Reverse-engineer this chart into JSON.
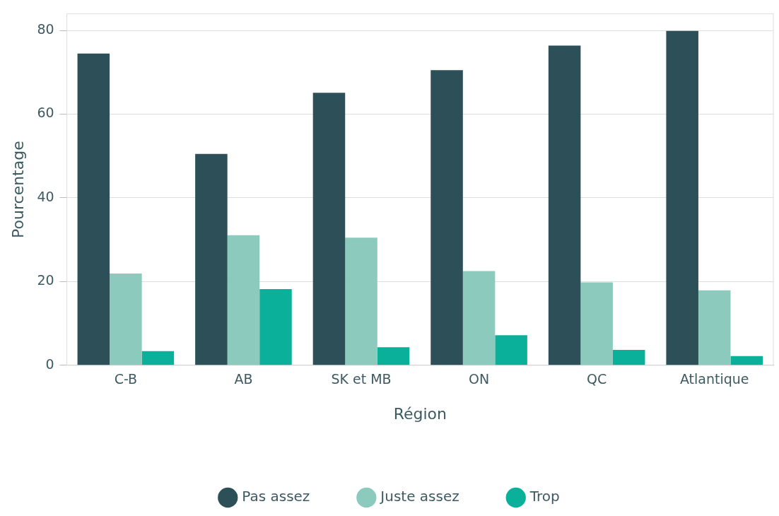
{
  "chart_data": {
    "type": "bar",
    "xlabel": "Région",
    "ylabel": "Pourcentage",
    "categories": [
      "C-B",
      "AB",
      "SK et MB",
      "ON",
      "QC",
      "Atlantique"
    ],
    "series": [
      {
        "name": "Pas assez",
        "color": "#2d4f58",
        "values": [
          74.5,
          50.5,
          65.1,
          70.5,
          76.4,
          79.9
        ]
      },
      {
        "name": "Juste assez",
        "color": "#8ccabd",
        "values": [
          21.9,
          31.1,
          30.5,
          22.5,
          19.8,
          17.9
        ]
      },
      {
        "name": "Trop",
        "color": "#0bb09a",
        "values": [
          3.4,
          18.2,
          4.3,
          7.2,
          3.7,
          2.2
        ]
      }
    ],
    "ylim": [
      0,
      84
    ],
    "yticks": [
      0,
      20,
      40,
      60,
      80
    ],
    "grid": "y",
    "legend": "bottom"
  }
}
